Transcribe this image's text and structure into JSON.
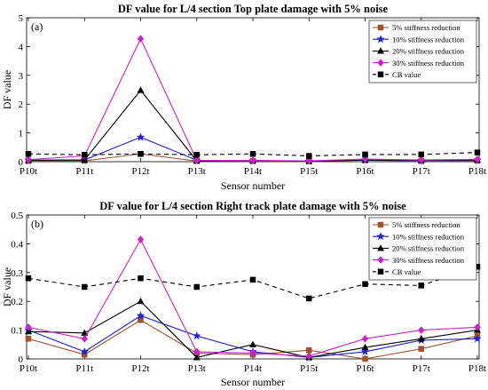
{
  "chart_data": [
    {
      "type": "line",
      "panel_label": "(a)",
      "title": "DF value  for L/4 section Top plate damage with 5% noise",
      "xlabel": "Sensor number",
      "ylabel": "DF value",
      "categories": [
        "P10t",
        "P11t",
        "P12t",
        "P13t",
        "P14t",
        "P15t",
        "P16t",
        "P17t",
        "P18t"
      ],
      "ylim": [
        0,
        5
      ],
      "yticks": [
        "0",
        "1",
        "2",
        "3",
        "4",
        "5"
      ],
      "grid": false,
      "legend_position": "top-right",
      "series": [
        {
          "name": "5% stiffness reduction",
          "color": "#a0522d",
          "marker": "square",
          "dashed": false,
          "values": [
            0.02,
            0.03,
            0.27,
            0.02,
            0.02,
            0.01,
            0.05,
            0.02,
            0.03
          ]
        },
        {
          "name": "10% stiffness reduction",
          "color": "#1f1fd6",
          "marker": "star",
          "dashed": false,
          "values": [
            0.05,
            0.06,
            0.85,
            0.05,
            0.03,
            0.02,
            0.05,
            0.04,
            0.05
          ]
        },
        {
          "name": "20% stiffness reduction",
          "color": "#000000",
          "marker": "triangle",
          "dashed": false,
          "values": [
            0.05,
            0.06,
            2.48,
            0.03,
            0.04,
            0.02,
            0.06,
            0.05,
            0.06
          ]
        },
        {
          "name": "30% stiffness reduction",
          "color": "#cc22cc",
          "marker": "diamond",
          "dashed": false,
          "values": [
            0.07,
            0.2,
            4.27,
            0.05,
            0.04,
            0.03,
            0.09,
            0.06,
            0.08
          ]
        },
        {
          "name": "CB value",
          "color": "#000000",
          "marker": "square",
          "dashed": true,
          "values": [
            0.27,
            0.24,
            0.27,
            0.24,
            0.27,
            0.2,
            0.25,
            0.25,
            0.32
          ]
        }
      ]
    },
    {
      "type": "line",
      "panel_label": "(b)",
      "title": "DF value  for L/4 section Right track plate damage with 5% noise",
      "xlabel": "Sensor number",
      "ylabel": "DF value",
      "categories": [
        "P10t",
        "P11t",
        "P12t",
        "P13t",
        "P14t",
        "P15t",
        "P16t",
        "P17t",
        "P18t"
      ],
      "ylim": [
        0,
        0.5
      ],
      "yticks": [
        "0",
        "0.1",
        "0.2",
        "0.3",
        "0.4",
        "0.5"
      ],
      "grid": false,
      "legend_position": "top-right",
      "series": [
        {
          "name": "5% stiffness reduction",
          "color": "#a0522d",
          "marker": "square",
          "dashed": false,
          "values": [
            0.07,
            0.015,
            0.135,
            0.02,
            0.015,
            0.03,
            0.0,
            0.035,
            0.08
          ]
        },
        {
          "name": "10% stiffness reduction",
          "color": "#1f1fd6",
          "marker": "star",
          "dashed": false,
          "values": [
            0.1,
            0.025,
            0.15,
            0.08,
            0.025,
            0.005,
            0.025,
            0.065,
            0.07
          ]
        },
        {
          "name": "20% stiffness reduction",
          "color": "#000000",
          "marker": "triangle",
          "dashed": false,
          "values": [
            0.095,
            0.09,
            0.2,
            0.005,
            0.05,
            0.005,
            0.04,
            0.07,
            0.1
          ]
        },
        {
          "name": "30% stiffness reduction",
          "color": "#cc22cc",
          "marker": "diamond",
          "dashed": false,
          "values": [
            0.11,
            0.07,
            0.415,
            0.025,
            0.02,
            0.01,
            0.07,
            0.1,
            0.11
          ]
        },
        {
          "name": "CB value",
          "color": "#000000",
          "marker": "square",
          "dashed": true,
          "values": [
            0.28,
            0.25,
            0.28,
            0.25,
            0.275,
            0.21,
            0.26,
            0.255,
            0.32
          ]
        }
      ]
    }
  ]
}
